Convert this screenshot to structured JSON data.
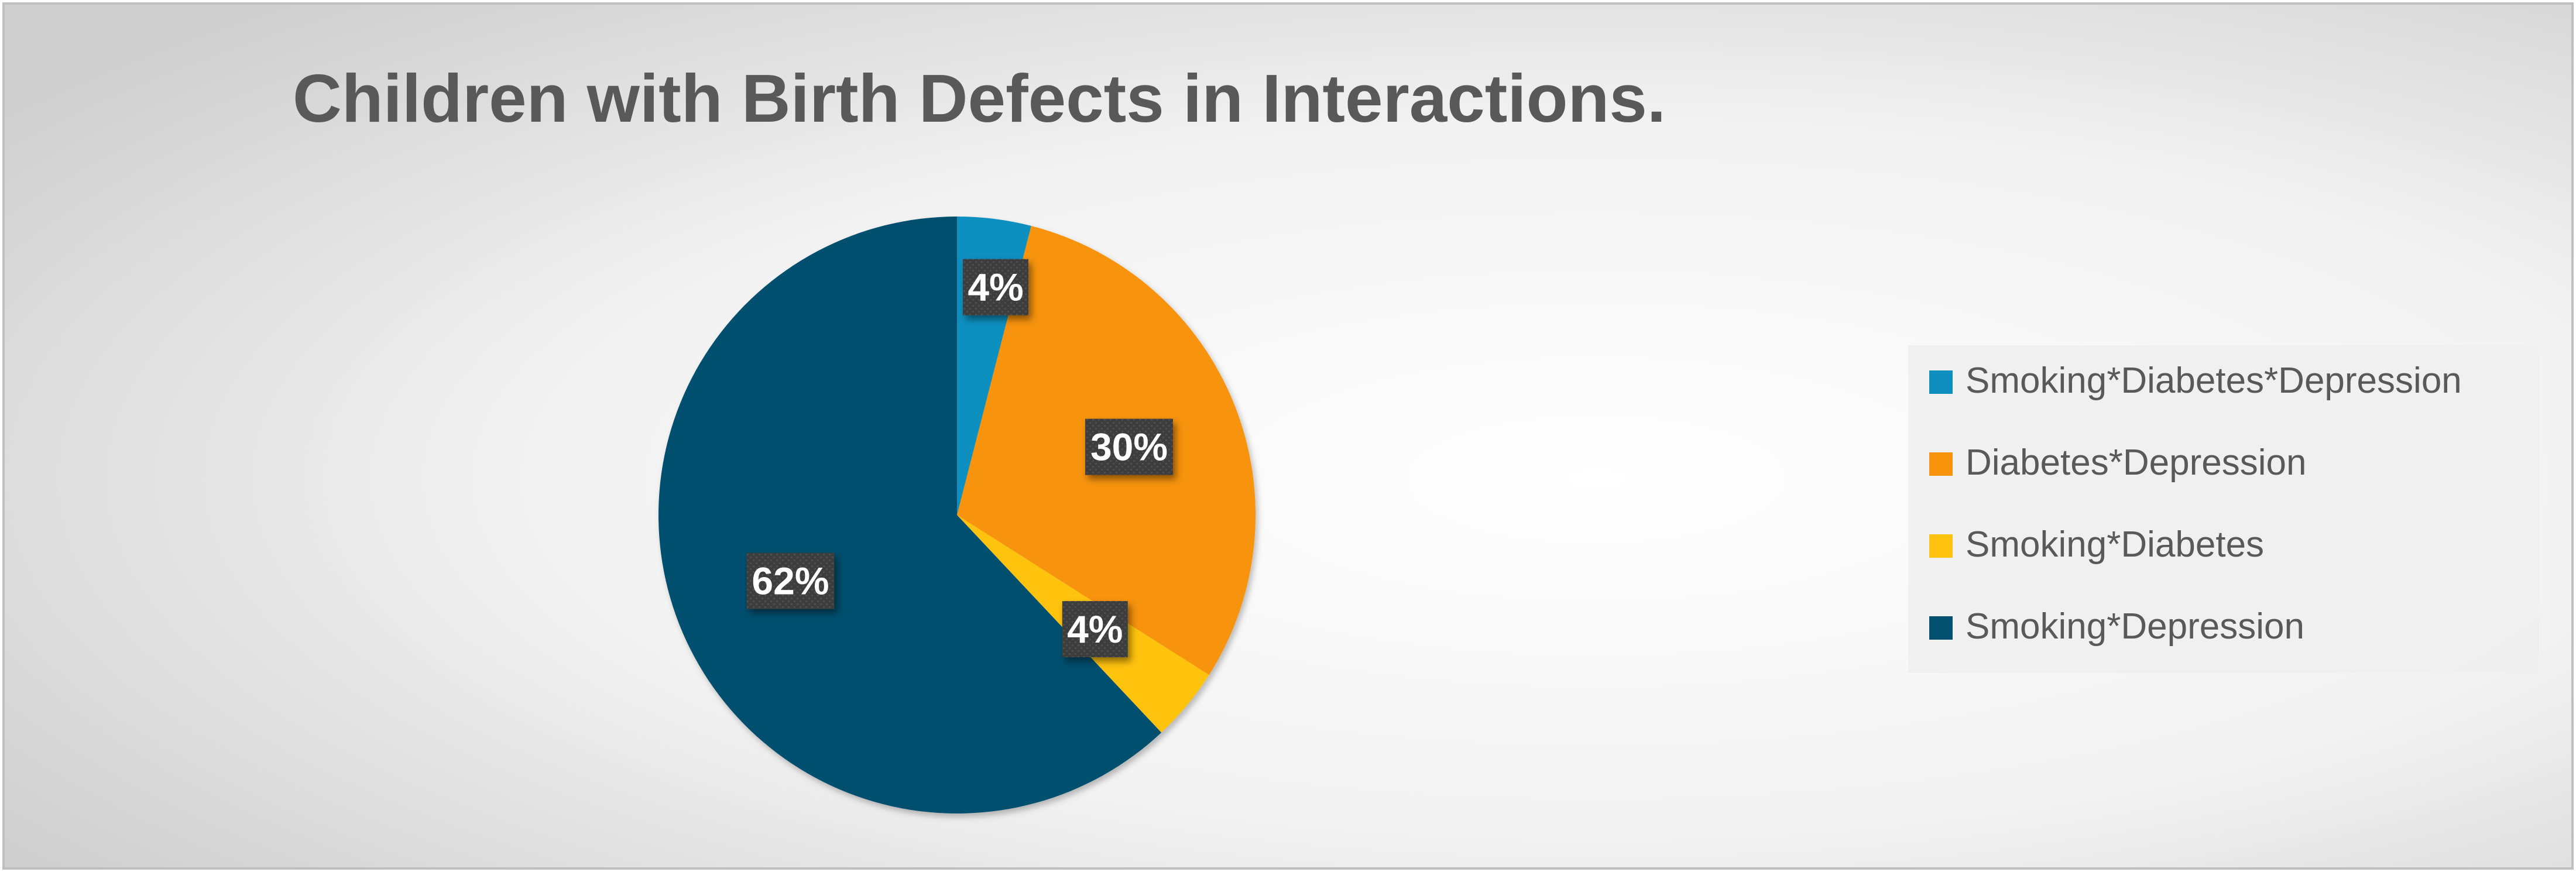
{
  "chart_data": {
    "type": "pie",
    "title": "Children with Birth Defects in Interactions.",
    "categories": [
      "Smoking*Diabetes*Depression",
      "Diabetes*Depression",
      "Smoking*Diabetes",
      "Smoking*Depression"
    ],
    "values": [
      4,
      30,
      4,
      62
    ],
    "data_labels": [
      "4%",
      "30%",
      "4%",
      "62%"
    ],
    "colors": [
      "#0F8FC0",
      "#F7930A",
      "#FFC20E",
      "#03506E"
    ],
    "start_angle_deg": 0,
    "direction": "clockwise",
    "legend_position": "right"
  }
}
